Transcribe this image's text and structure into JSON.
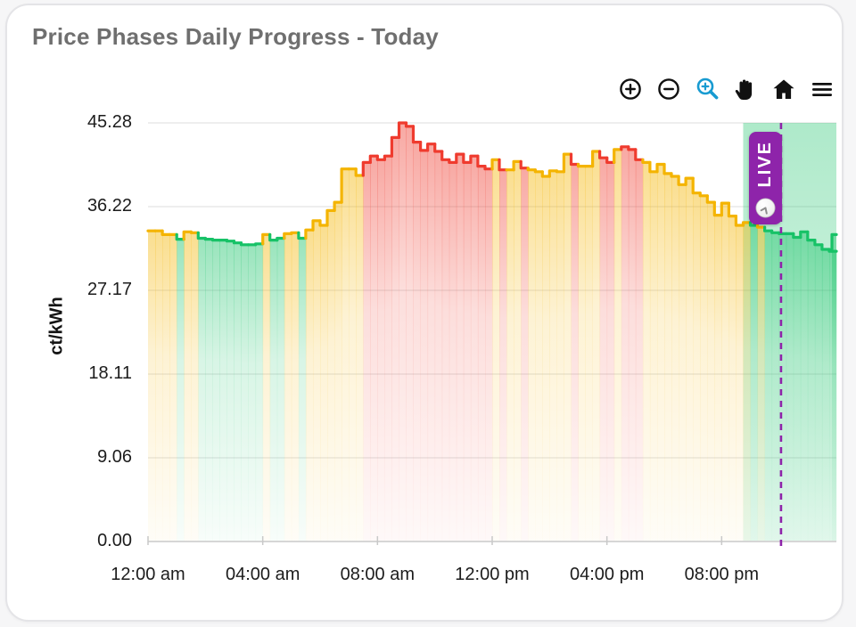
{
  "card": {
    "title": "Price Phases Daily Progress - Today"
  },
  "toolbar": {
    "buttons": [
      {
        "name": "zoom-in",
        "icon": "plus-circle-icon"
      },
      {
        "name": "zoom-out",
        "icon": "minus-circle-icon"
      },
      {
        "name": "box-zoom",
        "icon": "magnifier-plus-icon",
        "active": true
      },
      {
        "name": "pan",
        "icon": "hand-icon"
      },
      {
        "name": "reset-view",
        "icon": "home-icon"
      },
      {
        "name": "chart-menu",
        "icon": "hamburger-icon"
      }
    ],
    "active_tool_color": "#189bd1",
    "icon_color": "#111111"
  },
  "chart_data": {
    "type": "step-area",
    "title": "Price Phases Daily Progress - Today",
    "xlabel": "",
    "ylabel": "ct/kWh",
    "ylim": [
      0,
      45.28
    ],
    "x_hours_span": 24,
    "step_minutes": 15,
    "grid": true,
    "legend": false,
    "yticks": [
      0,
      9.06,
      18.11,
      27.17,
      36.22,
      45.28
    ],
    "ytick_labels": [
      "0.00",
      "9.06",
      "18.11",
      "27.17",
      "36.22",
      "45.28"
    ],
    "xticks_hours": [
      0,
      4,
      8,
      12,
      16,
      20
    ],
    "xtick_labels": [
      "12:00 am",
      "04:00 am",
      "08:00 am",
      "12:00 pm",
      "04:00 pm",
      "08:00 pm"
    ],
    "phase_colors": {
      "g": "#17c267",
      "y": "#f4b400",
      "r": "#ef3b2e"
    },
    "phase_names": {
      "g": "green-cheap",
      "y": "yellow-medium",
      "r": "red-expensive"
    },
    "values": [
      33.6,
      33.6,
      33.2,
      33.2,
      32.7,
      33.5,
      33.4,
      32.8,
      32.7,
      32.6,
      32.6,
      32.5,
      32.3,
      32.1,
      32.1,
      32.2,
      33.2,
      32.6,
      32.8,
      33.3,
      33.4,
      32.8,
      33.7,
      34.7,
      34.2,
      35.8,
      36.7,
      40.3,
      40.3,
      39.6,
      41.0,
      41.7,
      41.3,
      41.7,
      43.7,
      45.28,
      44.9,
      43.2,
      42.3,
      43.0,
      42.2,
      41.3,
      41.0,
      41.9,
      41.0,
      41.7,
      40.6,
      40.3,
      41.3,
      40.2,
      40.2,
      41.1,
      40.4,
      40.2,
      40.0,
      39.5,
      40.1,
      40.0,
      41.9,
      40.8,
      40.6,
      40.6,
      42.2,
      41.5,
      41.0,
      42.4,
      42.7,
      42.4,
      41.3,
      41.0,
      40.0,
      40.8,
      39.8,
      39.5,
      38.6,
      39.3,
      37.7,
      37.4,
      36.7,
      35.3,
      36.6,
      35.2,
      34.2,
      34.5,
      34.2,
      34.0,
      33.6,
      33.4,
      33.3,
      33.3,
      32.9,
      33.5,
      32.6,
      32.1,
      31.6,
      31.4
    ],
    "phases": "yyyygyygggggggggyggyygyyyyyyyyrrrrrrrrrrrrrrrrrryryyryyyyyyryyyrryrrryyyyyyyyyyyyyyygygggggggggggg",
    "closing_value": 33.2,
    "live_marker": {
      "label": "LIVE",
      "hours": 22.07,
      "color": "#8e24aa",
      "line_style": "dashed"
    },
    "highlight_band": {
      "start_hours": 20.75,
      "end_hours": 24,
      "color": "#17c267"
    }
  }
}
